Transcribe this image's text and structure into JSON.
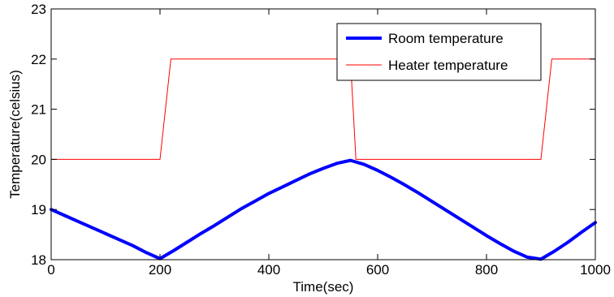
{
  "chart_data": {
    "type": "line",
    "title": "",
    "xlabel": "Time(sec)",
    "ylabel": "Temperature(celsius)",
    "xlim": [
      0,
      1000
    ],
    "ylim": [
      18,
      23
    ],
    "xticks": [
      0,
      200,
      400,
      600,
      800,
      1000
    ],
    "yticks": [
      18,
      19,
      20,
      21,
      22,
      23
    ],
    "grid": false,
    "legend_position": "top-right",
    "series": [
      {
        "name": "Room temperature",
        "color": "#0000ff",
        "x": [
          0,
          25,
          50,
          75,
          100,
          125,
          150,
          175,
          200,
          225,
          250,
          275,
          300,
          325,
          350,
          375,
          400,
          425,
          450,
          475,
          500,
          525,
          550,
          575,
          600,
          625,
          650,
          675,
          700,
          725,
          750,
          775,
          800,
          825,
          850,
          875,
          900,
          925,
          950,
          975,
          1000
        ],
        "y": [
          19.0,
          18.88,
          18.76,
          18.64,
          18.52,
          18.4,
          18.28,
          18.14,
          18.02,
          18.18,
          18.35,
          18.52,
          18.68,
          18.85,
          19.02,
          19.17,
          19.32,
          19.45,
          19.58,
          19.71,
          19.82,
          19.92,
          19.98,
          19.9,
          19.78,
          19.64,
          19.49,
          19.33,
          19.16,
          18.99,
          18.82,
          18.65,
          18.48,
          18.32,
          18.17,
          18.05,
          18.01,
          18.17,
          18.35,
          18.55,
          18.74
        ]
      },
      {
        "name": "Heater temperature",
        "color": "#ff0000",
        "x": [
          0,
          200,
          220,
          550,
          560,
          900,
          920,
          1000
        ],
        "y": [
          20,
          20,
          22,
          22,
          20,
          20,
          22,
          22
        ]
      }
    ]
  }
}
